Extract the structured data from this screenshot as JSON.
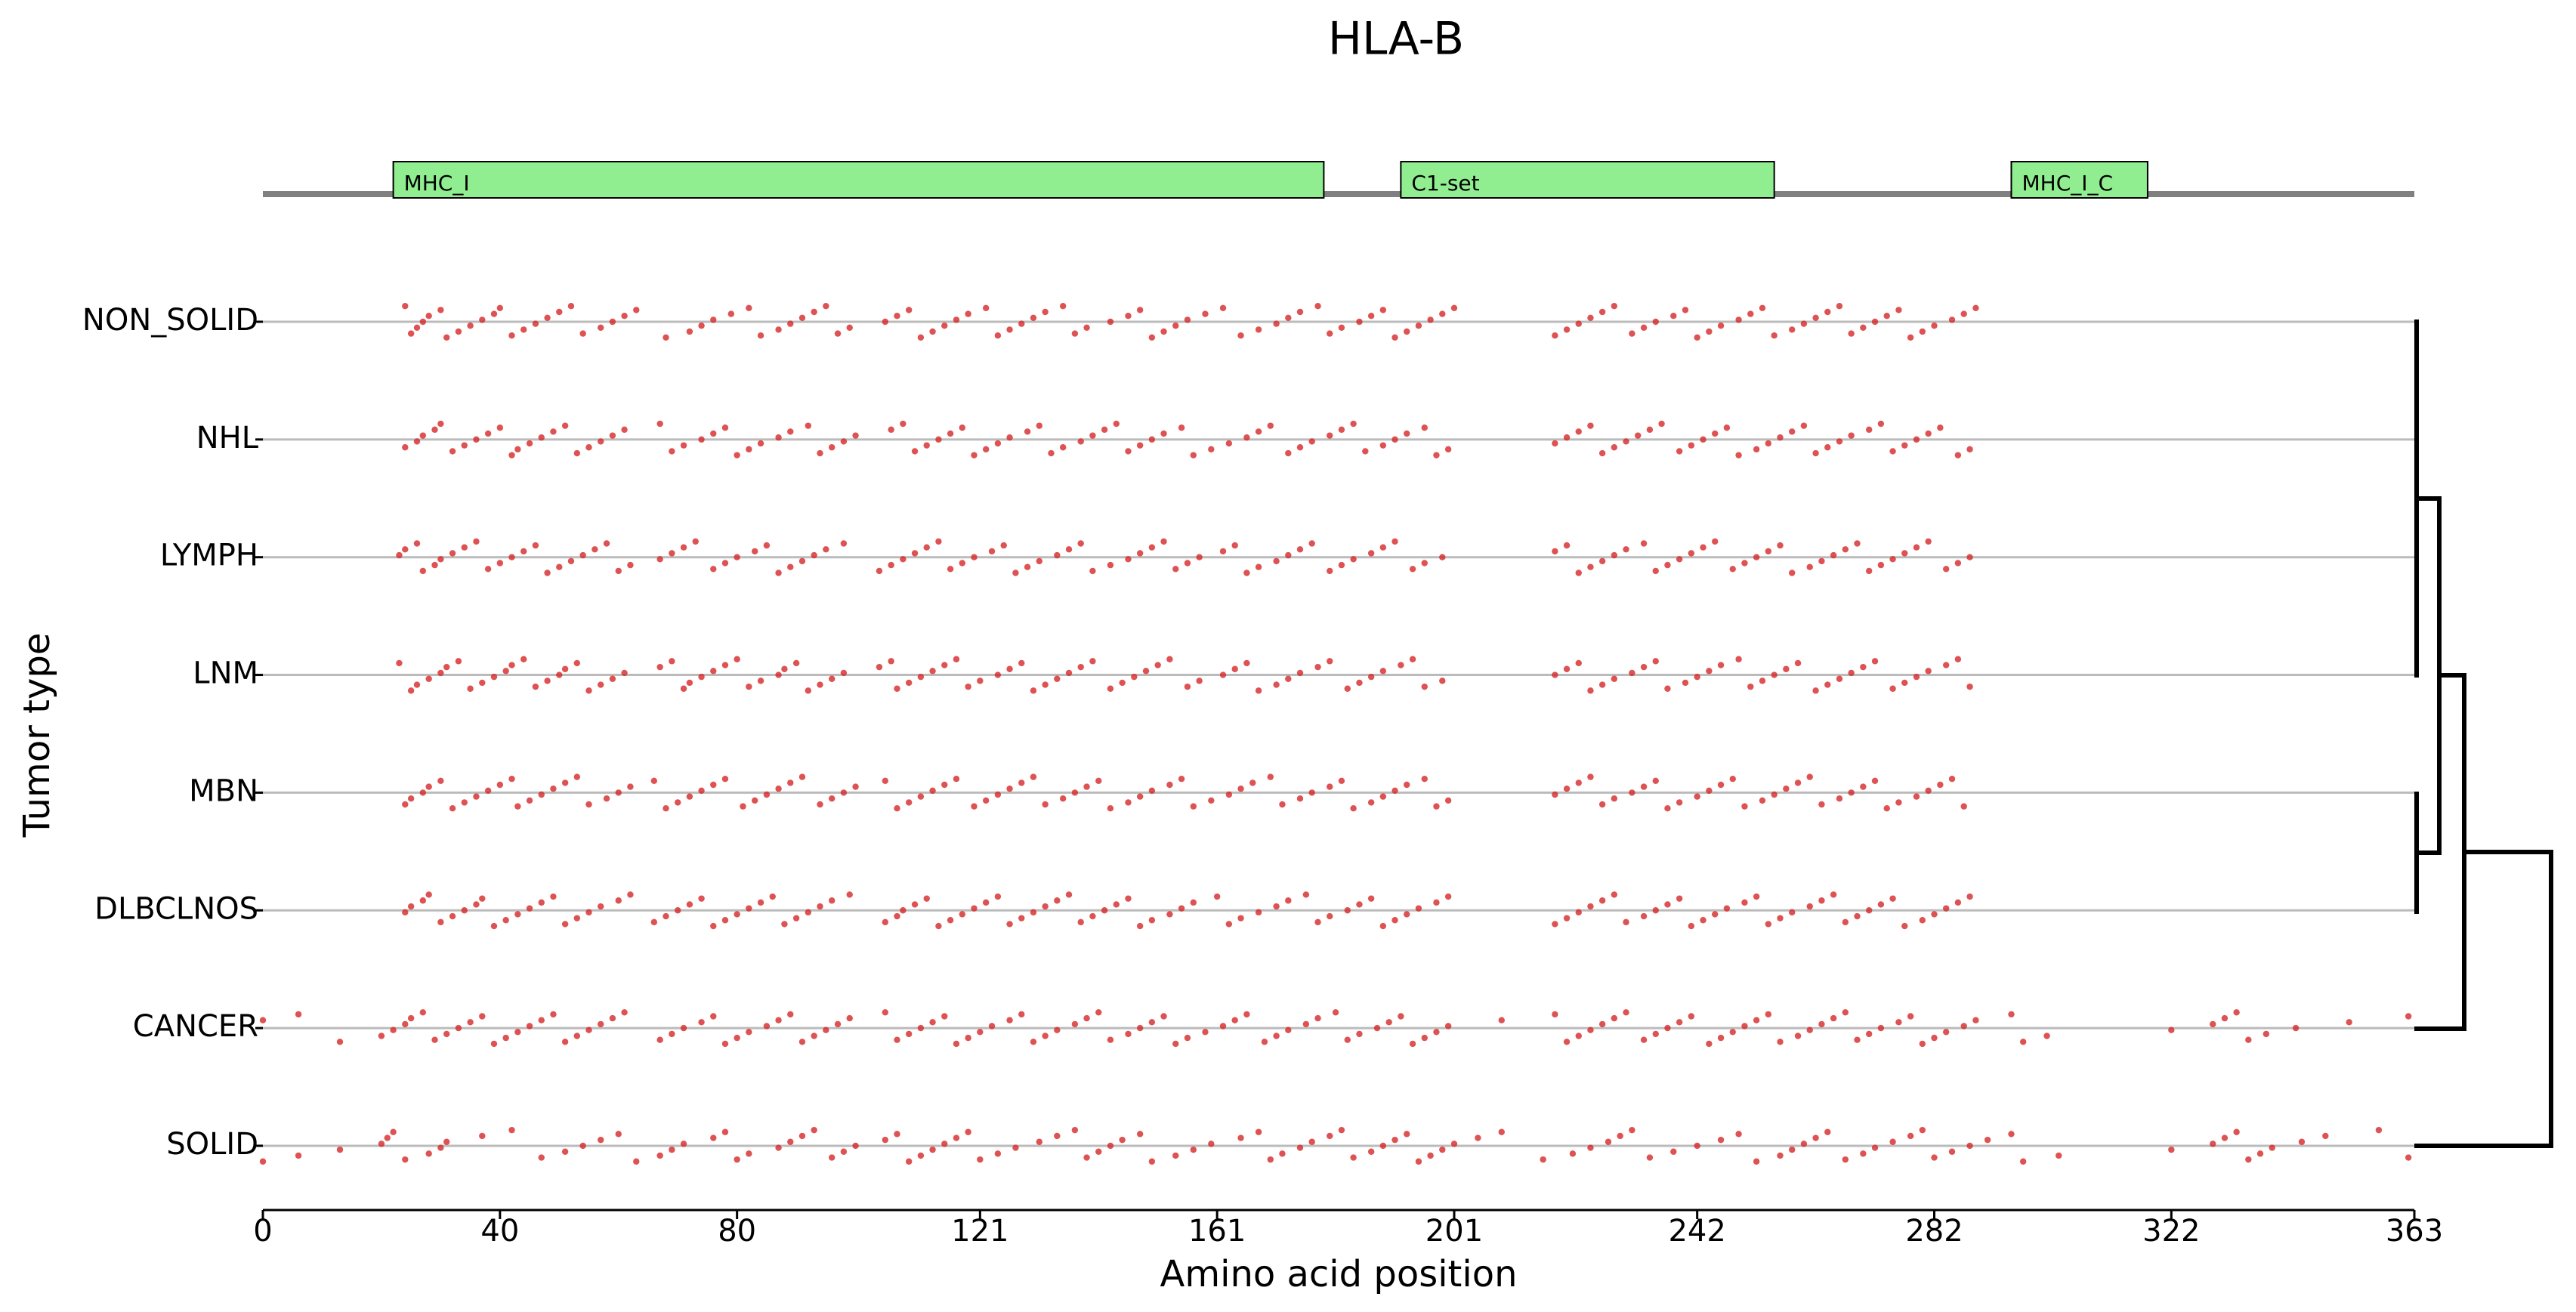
{
  "chart_data": {
    "type": "scatter",
    "title": "HLA-B",
    "xlabel": "Amino acid position",
    "ylabel": "Tumor type",
    "xlim": [
      0,
      363
    ],
    "xticks": [
      0,
      40,
      80,
      121,
      161,
      201,
      242,
      282,
      322,
      363
    ],
    "color": "#d62728",
    "domain_color": "#90ee90",
    "domains": [
      {
        "name": "MHC_I",
        "start": 22,
        "end": 179
      },
      {
        "name": "C1-set",
        "start": 192,
        "end": 255
      },
      {
        "name": "MHC_I_C",
        "start": 295,
        "end": 318
      }
    ],
    "series": [
      {
        "name": "NON_SOLID",
        "x": [
          24,
          25,
          26,
          27,
          28,
          30,
          31,
          33,
          35,
          37,
          39,
          40,
          42,
          44,
          46,
          48,
          50,
          52,
          54,
          57,
          59,
          61,
          63,
          68,
          72,
          74,
          76,
          79,
          82,
          84,
          87,
          89,
          91,
          93,
          95,
          97,
          99,
          105,
          107,
          109,
          111,
          113,
          115,
          117,
          119,
          122,
          124,
          126,
          128,
          130,
          132,
          135,
          137,
          139,
          143,
          146,
          148,
          150,
          152,
          154,
          156,
          159,
          162,
          165,
          168,
          171,
          173,
          175,
          178,
          180,
          182,
          185,
          187,
          189,
          191,
          193,
          195,
          197,
          199,
          201,
          218,
          220,
          222,
          224,
          226,
          228,
          231,
          233,
          235,
          238,
          240,
          242,
          244,
          246,
          249,
          251,
          253,
          255,
          258,
          260,
          262,
          264,
          266,
          268,
          270,
          272,
          274,
          276,
          278,
          280,
          282,
          285,
          287,
          289
        ]
      },
      {
        "name": "NHL",
        "x": [
          24,
          26,
          27,
          29,
          30,
          32,
          34,
          36,
          38,
          40,
          42,
          43,
          45,
          47,
          49,
          51,
          53,
          55,
          57,
          59,
          61,
          67,
          69,
          71,
          74,
          76,
          78,
          80,
          82,
          84,
          87,
          89,
          92,
          94,
          96,
          98,
          100,
          106,
          108,
          110,
          112,
          114,
          116,
          118,
          120,
          122,
          124,
          126,
          129,
          131,
          133,
          135,
          138,
          140,
          142,
          144,
          146,
          148,
          150,
          152,
          155,
          157,
          160,
          163,
          166,
          168,
          170,
          173,
          175,
          177,
          180,
          182,
          184,
          186,
          189,
          191,
          193,
          196,
          198,
          200,
          218,
          220,
          222,
          224,
          226,
          228,
          230,
          232,
          234,
          236,
          239,
          241,
          243,
          245,
          247,
          249,
          252,
          254,
          256,
          258,
          260,
          262,
          264,
          266,
          268,
          271,
          273,
          275,
          277,
          279,
          281,
          283,
          286,
          288
        ]
      },
      {
        "name": "LYMPH",
        "x": [
          23,
          24,
          26,
          27,
          29,
          30,
          32,
          34,
          36,
          38,
          40,
          42,
          44,
          46,
          48,
          50,
          52,
          54,
          56,
          58,
          60,
          62,
          67,
          69,
          71,
          73,
          76,
          78,
          80,
          83,
          85,
          87,
          89,
          91,
          93,
          95,
          98,
          104,
          106,
          108,
          110,
          112,
          114,
          116,
          118,
          120,
          123,
          125,
          127,
          129,
          131,
          134,
          136,
          138,
          140,
          143,
          146,
          148,
          150,
          152,
          154,
          156,
          158,
          162,
          164,
          166,
          168,
          171,
          173,
          175,
          177,
          180,
          182,
          184,
          187,
          189,
          191,
          194,
          196,
          199,
          218,
          220,
          222,
          224,
          226,
          228,
          230,
          233,
          235,
          237,
          239,
          241,
          243,
          245,
          248,
          250,
          252,
          254,
          256,
          258,
          261,
          263,
          265,
          267,
          269,
          271,
          273,
          275,
          277,
          279,
          281,
          284,
          286,
          288
        ]
      },
      {
        "name": "LNM",
        "x": [
          23,
          25,
          26,
          28,
          30,
          31,
          33,
          35,
          37,
          39,
          41,
          42,
          44,
          46,
          48,
          50,
          51,
          53,
          55,
          57,
          59,
          61,
          67,
          69,
          71,
          72,
          74,
          76,
          78,
          80,
          82,
          84,
          87,
          88,
          90,
          92,
          94,
          96,
          98,
          104,
          106,
          107,
          109,
          111,
          113,
          115,
          117,
          119,
          121,
          124,
          126,
          128,
          130,
          132,
          134,
          136,
          138,
          140,
          143,
          145,
          147,
          149,
          151,
          153,
          156,
          158,
          162,
          164,
          166,
          168,
          171,
          173,
          175,
          178,
          180,
          183,
          185,
          187,
          189,
          192,
          194,
          196,
          199,
          218,
          220,
          222,
          224,
          226,
          228,
          231,
          233,
          235,
          237,
          240,
          242,
          244,
          246,
          249,
          251,
          253,
          255,
          257,
          259,
          262,
          264,
          266,
          268,
          270,
          272,
          275,
          277,
          279,
          281,
          284,
          286,
          288
        ]
      },
      {
        "name": "MBN",
        "x": [
          24,
          25,
          27,
          28,
          30,
          32,
          34,
          36,
          38,
          40,
          42,
          43,
          45,
          47,
          49,
          51,
          53,
          55,
          58,
          60,
          62,
          66,
          68,
          70,
          72,
          74,
          76,
          78,
          81,
          83,
          85,
          87,
          89,
          91,
          94,
          96,
          98,
          100,
          105,
          107,
          109,
          111,
          113,
          115,
          117,
          120,
          122,
          124,
          126,
          128,
          130,
          132,
          135,
          137,
          139,
          141,
          143,
          146,
          148,
          150,
          153,
          155,
          157,
          160,
          163,
          165,
          167,
          170,
          172,
          175,
          177,
          180,
          182,
          184,
          187,
          189,
          191,
          193,
          196,
          198,
          200,
          218,
          220,
          222,
          224,
          226,
          228,
          231,
          233,
          235,
          237,
          239,
          242,
          244,
          246,
          248,
          250,
          253,
          255,
          257,
          259,
          261,
          263,
          266,
          268,
          270,
          272,
          274,
          276,
          279,
          281,
          283,
          285,
          287
        ]
      },
      {
        "name": "DLBCLNOS",
        "x": [
          24,
          25,
          27,
          28,
          30,
          32,
          34,
          36,
          37,
          39,
          41,
          43,
          45,
          47,
          49,
          51,
          53,
          55,
          57,
          60,
          62,
          66,
          68,
          70,
          72,
          74,
          76,
          78,
          80,
          82,
          84,
          86,
          88,
          90,
          92,
          94,
          96,
          99,
          105,
          107,
          108,
          110,
          112,
          114,
          116,
          118,
          120,
          122,
          124,
          126,
          128,
          130,
          132,
          134,
          136,
          138,
          140,
          142,
          144,
          146,
          148,
          150,
          153,
          155,
          157,
          161,
          163,
          165,
          168,
          171,
          173,
          176,
          178,
          180,
          183,
          185,
          187,
          189,
          191,
          193,
          195,
          198,
          200,
          218,
          220,
          222,
          224,
          226,
          228,
          230,
          233,
          235,
          237,
          239,
          241,
          243,
          245,
          247,
          250,
          252,
          254,
          256,
          258,
          261,
          263,
          265,
          267,
          269,
          271,
          273,
          275,
          277,
          280,
          282,
          284,
          286,
          288
        ]
      },
      {
        "name": "CANCER",
        "x": [
          0,
          6,
          13,
          20,
          22,
          24,
          25,
          27,
          29,
          31,
          33,
          35,
          37,
          39,
          41,
          43,
          45,
          47,
          49,
          51,
          53,
          55,
          57,
          59,
          61,
          67,
          69,
          71,
          74,
          76,
          78,
          80,
          82,
          85,
          87,
          89,
          91,
          93,
          95,
          97,
          99,
          105,
          107,
          109,
          111,
          113,
          115,
          117,
          119,
          121,
          123,
          126,
          128,
          130,
          132,
          134,
          137,
          139,
          141,
          143,
          146,
          148,
          150,
          152,
          154,
          156,
          159,
          162,
          164,
          166,
          169,
          171,
          173,
          176,
          178,
          181,
          183,
          185,
          188,
          190,
          192,
          194,
          196,
          198,
          200,
          209,
          218,
          220,
          222,
          224,
          226,
          228,
          230,
          233,
          235,
          237,
          239,
          241,
          244,
          246,
          248,
          250,
          252,
          254,
          256,
          259,
          261,
          263,
          265,
          267,
          269,
          271,
          273,
          276,
          278,
          280,
          282,
          284,
          287,
          289,
          295,
          297,
          301,
          322,
          329,
          331,
          333,
          335,
          338,
          343,
          352,
          362
        ]
      },
      {
        "name": "SOLID",
        "x": [
          0,
          6,
          13,
          20,
          21,
          22,
          24,
          28,
          30,
          31,
          37,
          42,
          47,
          51,
          54,
          57,
          60,
          63,
          67,
          69,
          71,
          76,
          78,
          80,
          82,
          87,
          89,
          91,
          93,
          96,
          98,
          100,
          105,
          107,
          109,
          111,
          113,
          115,
          117,
          119,
          121,
          124,
          127,
          131,
          134,
          137,
          139,
          141,
          143,
          145,
          148,
          150,
          154,
          157,
          160,
          165,
          168,
          170,
          172,
          175,
          177,
          180,
          182,
          184,
          187,
          189,
          191,
          193,
          195,
          197,
          199,
          201,
          205,
          209,
          216,
          221,
          224,
          227,
          229,
          231,
          234,
          238,
          242,
          246,
          249,
          252,
          256,
          258,
          260,
          262,
          264,
          267,
          270,
          272,
          275,
          278,
          280,
          282,
          285,
          288,
          291,
          295,
          297,
          303,
          322,
          329,
          331,
          333,
          335,
          337,
          339,
          344,
          348,
          357,
          362
        ]
      }
    ]
  }
}
